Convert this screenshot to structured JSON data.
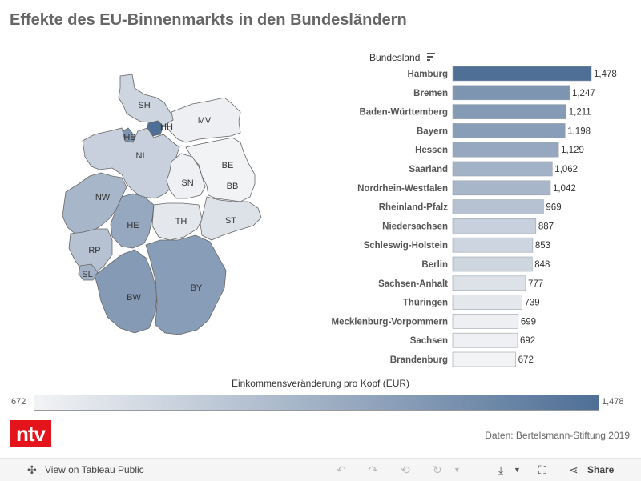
{
  "title": "Effekte des EU-Binnenmarkts in den Bundesländern",
  "sort_label": "Bundesland",
  "legend": {
    "title": "Einkommensveränderung pro Kopf (EUR)",
    "min_label": "672",
    "max_label": "1,478"
  },
  "logo_text": "ntv",
  "source": "Daten: Bertelsmann-Stiftung 2019",
  "footer": {
    "view_label": "View on Tableau Public",
    "share_label": "Share"
  },
  "colors": {
    "min": "#f2f3f5",
    "max": "#4f6f96",
    "border": "#999999",
    "text": "#333333"
  },
  "chart_data": {
    "type": "bar",
    "orientation": "horizontal",
    "categories": [
      "Hamburg",
      "Bremen",
      "Baden-Württemberg",
      "Bayern",
      "Hessen",
      "Saarland",
      "Nordrhein-Westfalen",
      "Rheinland-Pfalz",
      "Niedersachsen",
      "Schleswig-Holstein",
      "Berlin",
      "Sachsen-Anhalt",
      "Thüringen",
      "Mecklenburg-Vorpommern",
      "Sachsen",
      "Brandenburg"
    ],
    "values": [
      1478,
      1247,
      1211,
      1198,
      1129,
      1062,
      1042,
      969,
      887,
      853,
      848,
      777,
      739,
      699,
      692,
      672
    ],
    "value_labels": [
      "1,478",
      "1,247",
      "1,211",
      "1,198",
      "1,129",
      "1,062",
      "1,042",
      "969",
      "887",
      "853",
      "848",
      "777",
      "739",
      "699",
      "692",
      "672"
    ],
    "color_range": [
      672,
      1478
    ]
  },
  "map": {
    "states": [
      {
        "abbr": "SH",
        "value": 853
      },
      {
        "abbr": "HH",
        "value": 1478
      },
      {
        "abbr": "MV",
        "value": 699
      },
      {
        "abbr": "HB",
        "value": 1247
      },
      {
        "abbr": "NI",
        "value": 887
      },
      {
        "abbr": "BE",
        "value": 848
      },
      {
        "abbr": "BB",
        "value": 672
      },
      {
        "abbr": "SN",
        "value": 692
      },
      {
        "abbr": "ST",
        "value": 777
      },
      {
        "abbr": "NW",
        "value": 1042
      },
      {
        "abbr": "HE",
        "value": 1129
      },
      {
        "abbr": "TH",
        "value": 739
      },
      {
        "abbr": "RP",
        "value": 969
      },
      {
        "abbr": "SL",
        "value": 1062
      },
      {
        "abbr": "BW",
        "value": 1211
      },
      {
        "abbr": "BY",
        "value": 1198
      }
    ]
  }
}
